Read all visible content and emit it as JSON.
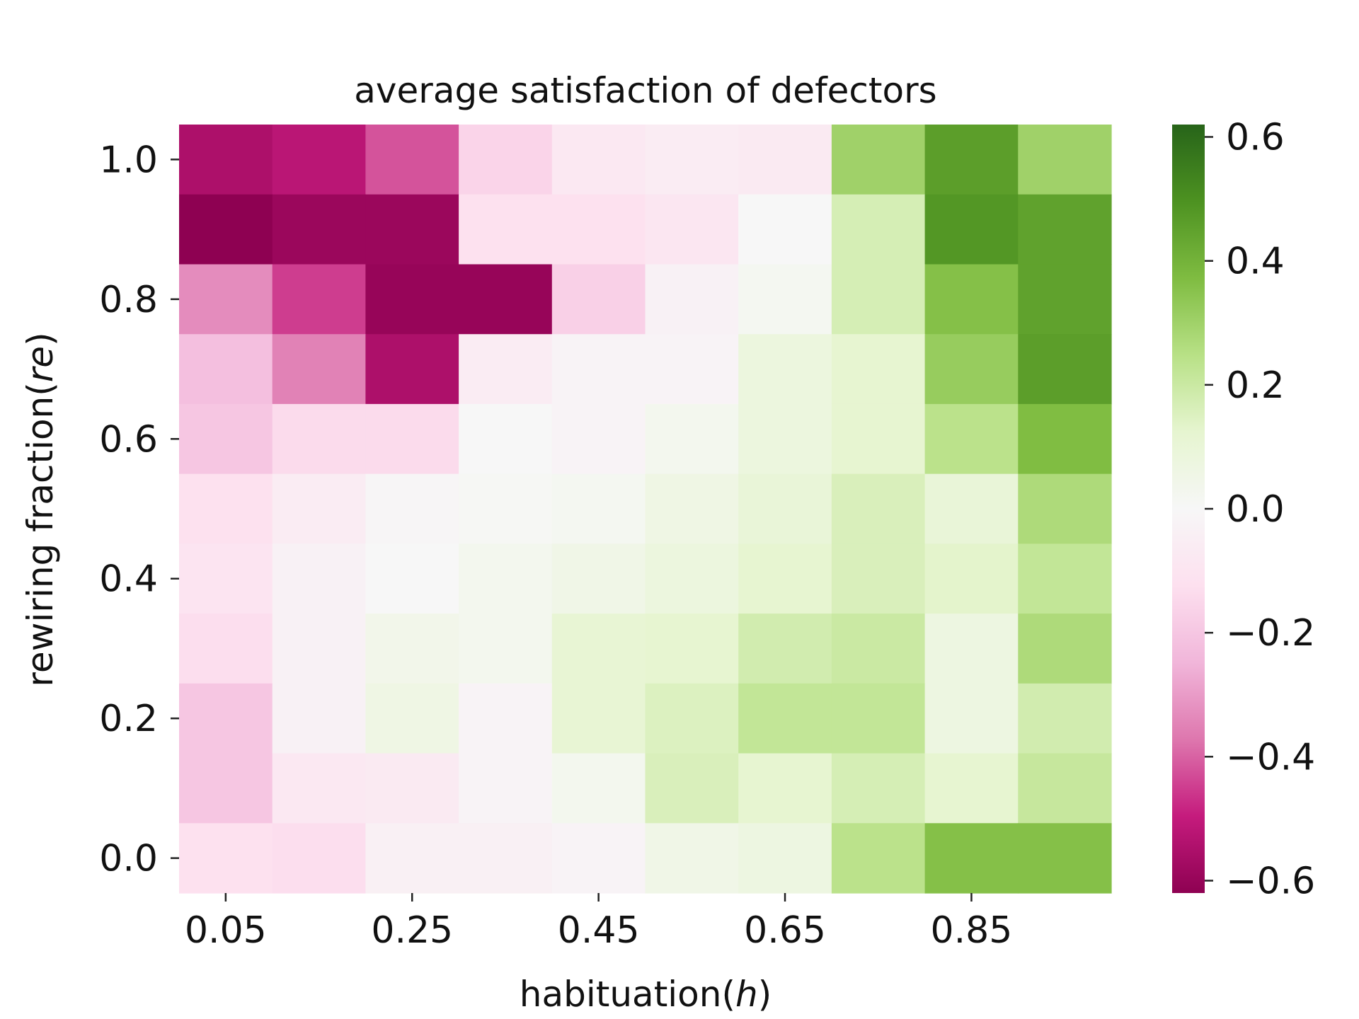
{
  "chart_data": {
    "type": "heatmap",
    "title": "average satisfaction of defectors",
    "xlabel": "habituation",
    "xlabel_symbol": "h",
    "ylabel": "rewiring fraction",
    "ylabel_symbol": "re",
    "x": [
      0.05,
      0.15,
      0.25,
      0.35,
      0.45,
      0.55,
      0.65,
      0.75,
      0.85,
      0.95
    ],
    "y": [
      1.0,
      0.9,
      0.8,
      0.7,
      0.6,
      0.5,
      0.4,
      0.3,
      0.2,
      0.1,
      0.0
    ],
    "x_tick_labels": [
      "0.05",
      "0.25",
      "0.45",
      "0.65",
      "0.85"
    ],
    "y_tick_labels": [
      "1.0",
      "0.8",
      "0.6",
      "0.4",
      "0.2",
      "0.0"
    ],
    "colorbar": {
      "colormap": "PiYG",
      "range": [
        -0.62,
        0.62
      ],
      "ticks": [
        0.6,
        0.4,
        0.2,
        0.0,
        -0.2,
        -0.4,
        -0.6
      ],
      "tick_labels": [
        "0.6",
        "0.4",
        "0.2",
        "0.0",
        "−0.2",
        "−0.4",
        "−0.6"
      ]
    },
    "values": [
      [
        -0.55,
        -0.52,
        -0.42,
        -0.16,
        -0.08,
        -0.06,
        -0.07,
        0.3,
        0.46,
        0.3
      ],
      [
        -0.62,
        -0.59,
        -0.59,
        -0.12,
        -0.12,
        -0.09,
        0.0,
        0.17,
        0.48,
        0.45
      ],
      [
        -0.33,
        -0.45,
        -0.6,
        -0.6,
        -0.17,
        -0.03,
        0.02,
        0.17,
        0.36,
        0.45
      ],
      [
        -0.22,
        -0.35,
        -0.55,
        -0.06,
        -0.02,
        -0.02,
        0.08,
        0.12,
        0.32,
        0.46
      ],
      [
        -0.2,
        -0.14,
        -0.14,
        0.0,
        -0.02,
        0.03,
        0.08,
        0.12,
        0.24,
        0.37
      ],
      [
        -0.12,
        -0.06,
        -0.01,
        0.01,
        0.02,
        0.06,
        0.1,
        0.16,
        0.1,
        0.27
      ],
      [
        -0.1,
        -0.03,
        0.0,
        0.03,
        0.05,
        0.08,
        0.12,
        0.16,
        0.13,
        0.22
      ],
      [
        -0.13,
        -0.03,
        0.04,
        0.03,
        0.11,
        0.12,
        0.18,
        0.2,
        0.07,
        0.27
      ],
      [
        -0.2,
        -0.03,
        0.06,
        -0.02,
        0.11,
        0.15,
        0.22,
        0.22,
        0.07,
        0.18
      ],
      [
        -0.2,
        -0.08,
        -0.07,
        -0.02,
        0.03,
        0.16,
        0.12,
        0.17,
        0.12,
        0.21
      ],
      [
        -0.12,
        -0.13,
        -0.04,
        -0.04,
        -0.02,
        0.05,
        0.07,
        0.24,
        0.36,
        0.36
      ]
    ]
  }
}
